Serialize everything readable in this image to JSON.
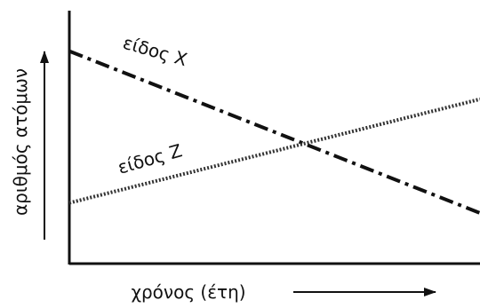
{
  "chart_data": {
    "type": "line",
    "xlabel": "χρόνος (έτη)",
    "ylabel": "αριθμός ατόμων",
    "x": [
      0,
      1
    ],
    "xlim": [
      0,
      1
    ],
    "ylim": [
      0,
      1
    ],
    "grid": false,
    "tick_labels": false,
    "series": [
      {
        "name": "είδος X",
        "values": [
          0.84,
          0.2
        ],
        "line_style": "dash-dot",
        "color": "#111111"
      },
      {
        "name": "είδος Z",
        "values": [
          0.24,
          0.65
        ],
        "line_style": "dotted",
        "color": "#333333"
      }
    ]
  }
}
